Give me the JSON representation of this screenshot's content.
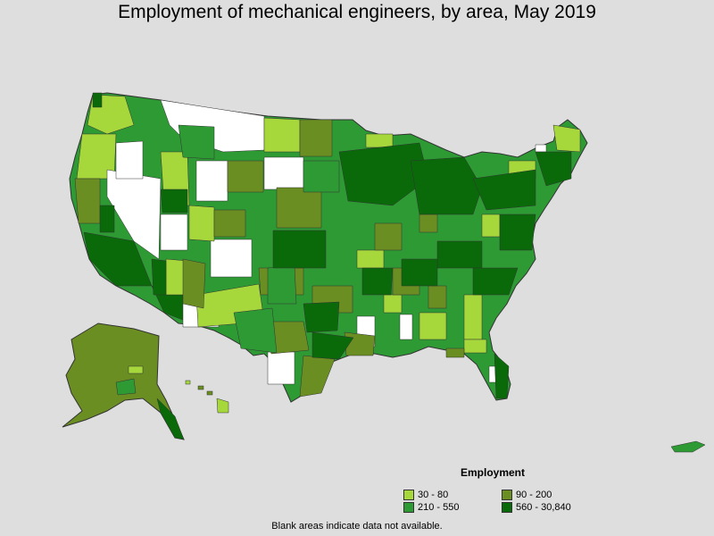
{
  "title": "Employment of mechanical engineers, by area, May 2019",
  "legend": {
    "title": "Employment",
    "items": [
      {
        "label": "30 - 80",
        "color": "#a6d83c"
      },
      {
        "label": "90 - 200",
        "color": "#6b8e23"
      },
      {
        "label": "210 - 550",
        "color": "#2e9a34"
      },
      {
        "label": "560 - 30,840",
        "color": "#0a6a0a"
      }
    ]
  },
  "footnote": "Blank areas indicate data not available.",
  "colors": {
    "background": "#dedede",
    "no_data": "#ffffff",
    "border": "#333333"
  }
}
